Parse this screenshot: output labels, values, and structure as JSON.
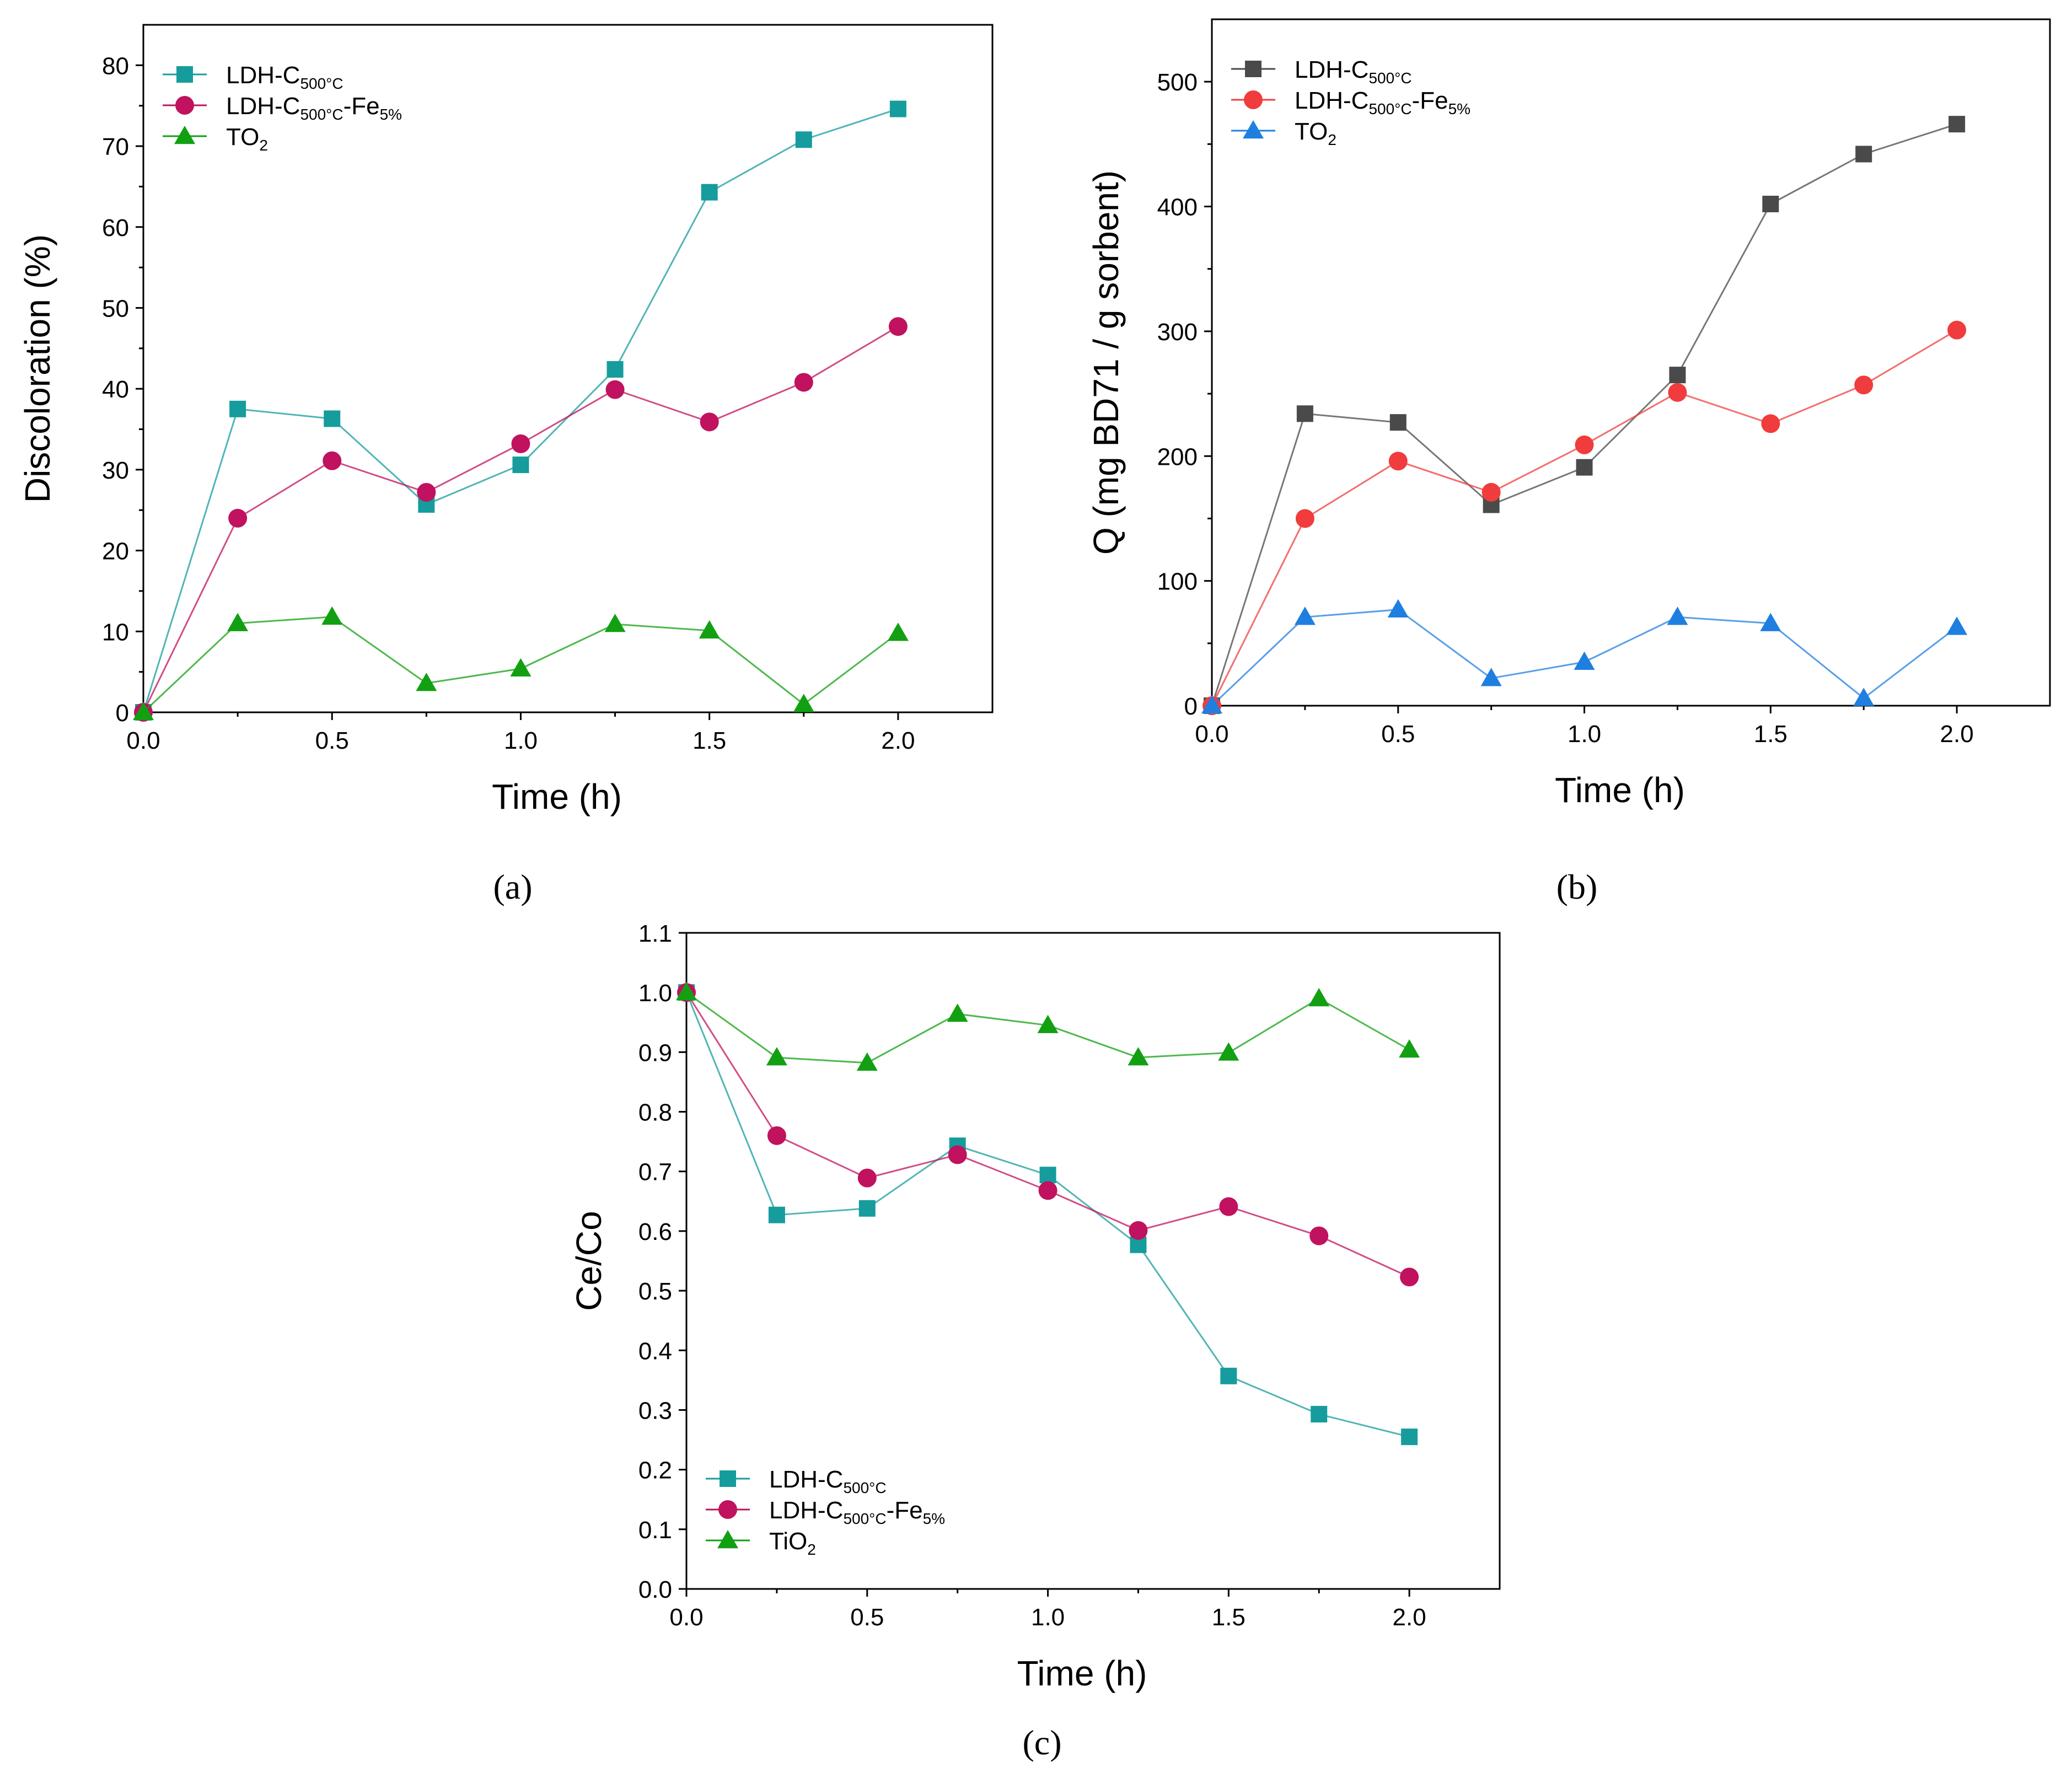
{
  "chart_data": [
    {
      "panel": "a",
      "caption": "(a)",
      "type": "line",
      "xlabel": "Time (h)",
      "ylabel": "Discoloration (%)",
      "xlim": [
        0,
        2.25
      ],
      "ylim": [
        0,
        85
      ],
      "xticks": [
        "0.0",
        "0.5",
        "1.0",
        "1.5",
        "2.0"
      ],
      "yticks": [
        "0",
        "10",
        "20",
        "30",
        "40",
        "50",
        "60",
        "70",
        "80"
      ],
      "legend_position": "top-left",
      "x": [
        0,
        0.25,
        0.5,
        0.75,
        1.0,
        1.25,
        1.5,
        1.75,
        2.0
      ],
      "series": [
        {
          "name": "LDH-C",
          "sub": "500°C",
          "tail": "",
          "tail_sub": "",
          "color": "#169c9c",
          "marker": "square",
          "values": [
            0,
            37.5,
            36.3,
            25.7,
            30.6,
            42.4,
            64.3,
            70.8,
            74.6
          ]
        },
        {
          "name": "LDH-C",
          "sub": "500°C",
          "tail": "-Fe",
          "tail_sub": "5%",
          "color": "#c0125e",
          "marker": "circle",
          "values": [
            0,
            24,
            31.1,
            27.2,
            33.2,
            39.9,
            35.9,
            40.8,
            47.7
          ]
        },
        {
          "name": "TO",
          "sub": "2",
          "tail": "",
          "tail_sub": "",
          "color": "#12a012",
          "marker": "triangle",
          "values": [
            0,
            11,
            11.8,
            3.6,
            5.4,
            10.9,
            10.1,
            1.0,
            9.8
          ]
        }
      ]
    },
    {
      "panel": "b",
      "caption": "(b)",
      "type": "line",
      "xlabel": "Time (h)",
      "ylabel": "Q (mg BD71 / g sorbent)",
      "xlim": [
        0,
        2.25
      ],
      "ylim": [
        0,
        550
      ],
      "xticks": [
        "0.0",
        "0.5",
        "1.0",
        "1.5",
        "2.0"
      ],
      "yticks": [
        "0",
        "100",
        "200",
        "300",
        "400",
        "500"
      ],
      "legend_position": "top-left",
      "x": [
        0,
        0.25,
        0.5,
        0.75,
        1.0,
        1.25,
        1.5,
        1.75,
        2.0
      ],
      "series": [
        {
          "name": "LDH-C",
          "sub": "500°C",
          "tail": "",
          "tail_sub": "",
          "color": "#4a4a4a",
          "marker": "square",
          "values": [
            0,
            234,
            227,
            161,
            191,
            265,
            402,
            442,
            466
          ]
        },
        {
          "name": "LDH-C",
          "sub": "500°C",
          "tail": "-Fe",
          "tail_sub": "5%",
          "color": "#f03c3c",
          "marker": "circle",
          "values": [
            0,
            150,
            196,
            171,
            209,
            251,
            226,
            257,
            301
          ]
        },
        {
          "name": "TO",
          "sub": "2",
          "tail": "",
          "tail_sub": "",
          "color": "#1f7fe0",
          "marker": "triangle",
          "values": [
            0,
            71,
            77,
            22,
            35,
            71,
            66,
            6,
            63
          ]
        }
      ]
    },
    {
      "panel": "c",
      "caption": "(c)",
      "type": "line",
      "xlabel": "Time (h)",
      "ylabel": "Ce/Co",
      "xlim": [
        0,
        2.25
      ],
      "ylim": [
        0,
        1.1
      ],
      "xticks": [
        "0.0",
        "0.5",
        "1.0",
        "1.5",
        "2.0"
      ],
      "yticks": [
        "0.0",
        "0.1",
        "0.2",
        "0.3",
        "0.4",
        "0.5",
        "0.6",
        "0.7",
        "0.8",
        "0.9",
        "1.0",
        "1.1"
      ],
      "legend_position": "bottom-left",
      "x": [
        0,
        0.25,
        0.5,
        0.75,
        1.0,
        1.25,
        1.5,
        1.75,
        2.0
      ],
      "series": [
        {
          "name": "LDH-C",
          "sub": "500°C",
          "tail": "",
          "tail_sub": "",
          "color": "#169c9c",
          "marker": "square",
          "values": [
            1.0,
            0.627,
            0.638,
            0.743,
            0.694,
            0.577,
            0.357,
            0.293,
            0.255
          ]
        },
        {
          "name": "LDH-C",
          "sub": "500°C",
          "tail": "-Fe",
          "tail_sub": "5%",
          "color": "#c0125e",
          "marker": "circle",
          "values": [
            1.0,
            0.76,
            0.689,
            0.728,
            0.668,
            0.601,
            0.641,
            0.592,
            0.523
          ]
        },
        {
          "name": "TiO",
          "sub": "2",
          "tail": "",
          "tail_sub": "",
          "color": "#12a012",
          "marker": "triangle",
          "values": [
            1.0,
            0.891,
            0.882,
            0.964,
            0.945,
            0.891,
            0.899,
            0.99,
            0.904
          ]
        }
      ]
    }
  ]
}
